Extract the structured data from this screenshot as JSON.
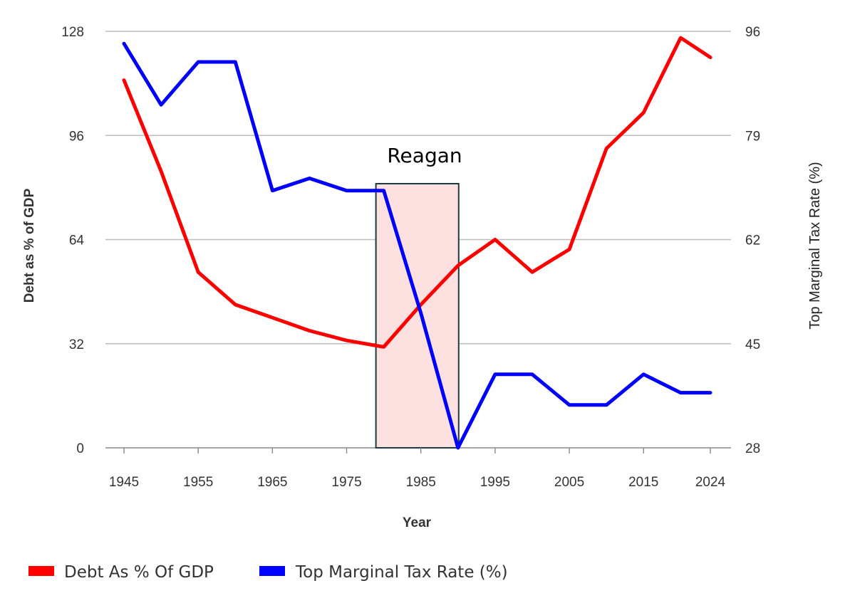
{
  "chart_data": {
    "type": "line",
    "xlabel": "Year",
    "ylabel_left": "Debt as % of GDP",
    "ylabel_right": "Top Marginal Tax Rate (%)",
    "x": [
      1945,
      1950,
      1955,
      1960,
      1965,
      1970,
      1975,
      1980,
      1985,
      1990,
      1995,
      2000,
      2005,
      2010,
      2015,
      2020,
      2024
    ],
    "x_ticks": [
      "1945",
      "1955",
      "1965",
      "1975",
      "1985",
      "1995",
      "2005",
      "2015",
      "2024"
    ],
    "left_axis": {
      "min": 0,
      "max": 128,
      "ticks": [
        "0",
        "32",
        "64",
        "96",
        "128"
      ]
    },
    "right_axis": {
      "min": 28,
      "max": 96,
      "ticks": [
        "28",
        "45",
        "62",
        "79",
        "96"
      ]
    },
    "grid": true,
    "series": [
      {
        "name": "Debt As % Of GDP",
        "axis": "left",
        "color": "#ff0000",
        "values": [
          113,
          85,
          54,
          44,
          40,
          36,
          33,
          31,
          44,
          56,
          64,
          54,
          61,
          92,
          103,
          126,
          120
        ]
      },
      {
        "name": "Top Marginal Tax Rate (%)",
        "axis": "right",
        "color": "#0000ff",
        "values": [
          94,
          84,
          91,
          91,
          70,
          72,
          70,
          70,
          50,
          28,
          40,
          40,
          35,
          35,
          40,
          37,
          37
        ]
      }
    ],
    "annotation": {
      "label": "Reagan",
      "x_start": 1980,
      "x_end": 1990,
      "fill": "#fde0e0",
      "border": "#1c3a44"
    },
    "legend": {
      "position": "bottom-left"
    }
  }
}
